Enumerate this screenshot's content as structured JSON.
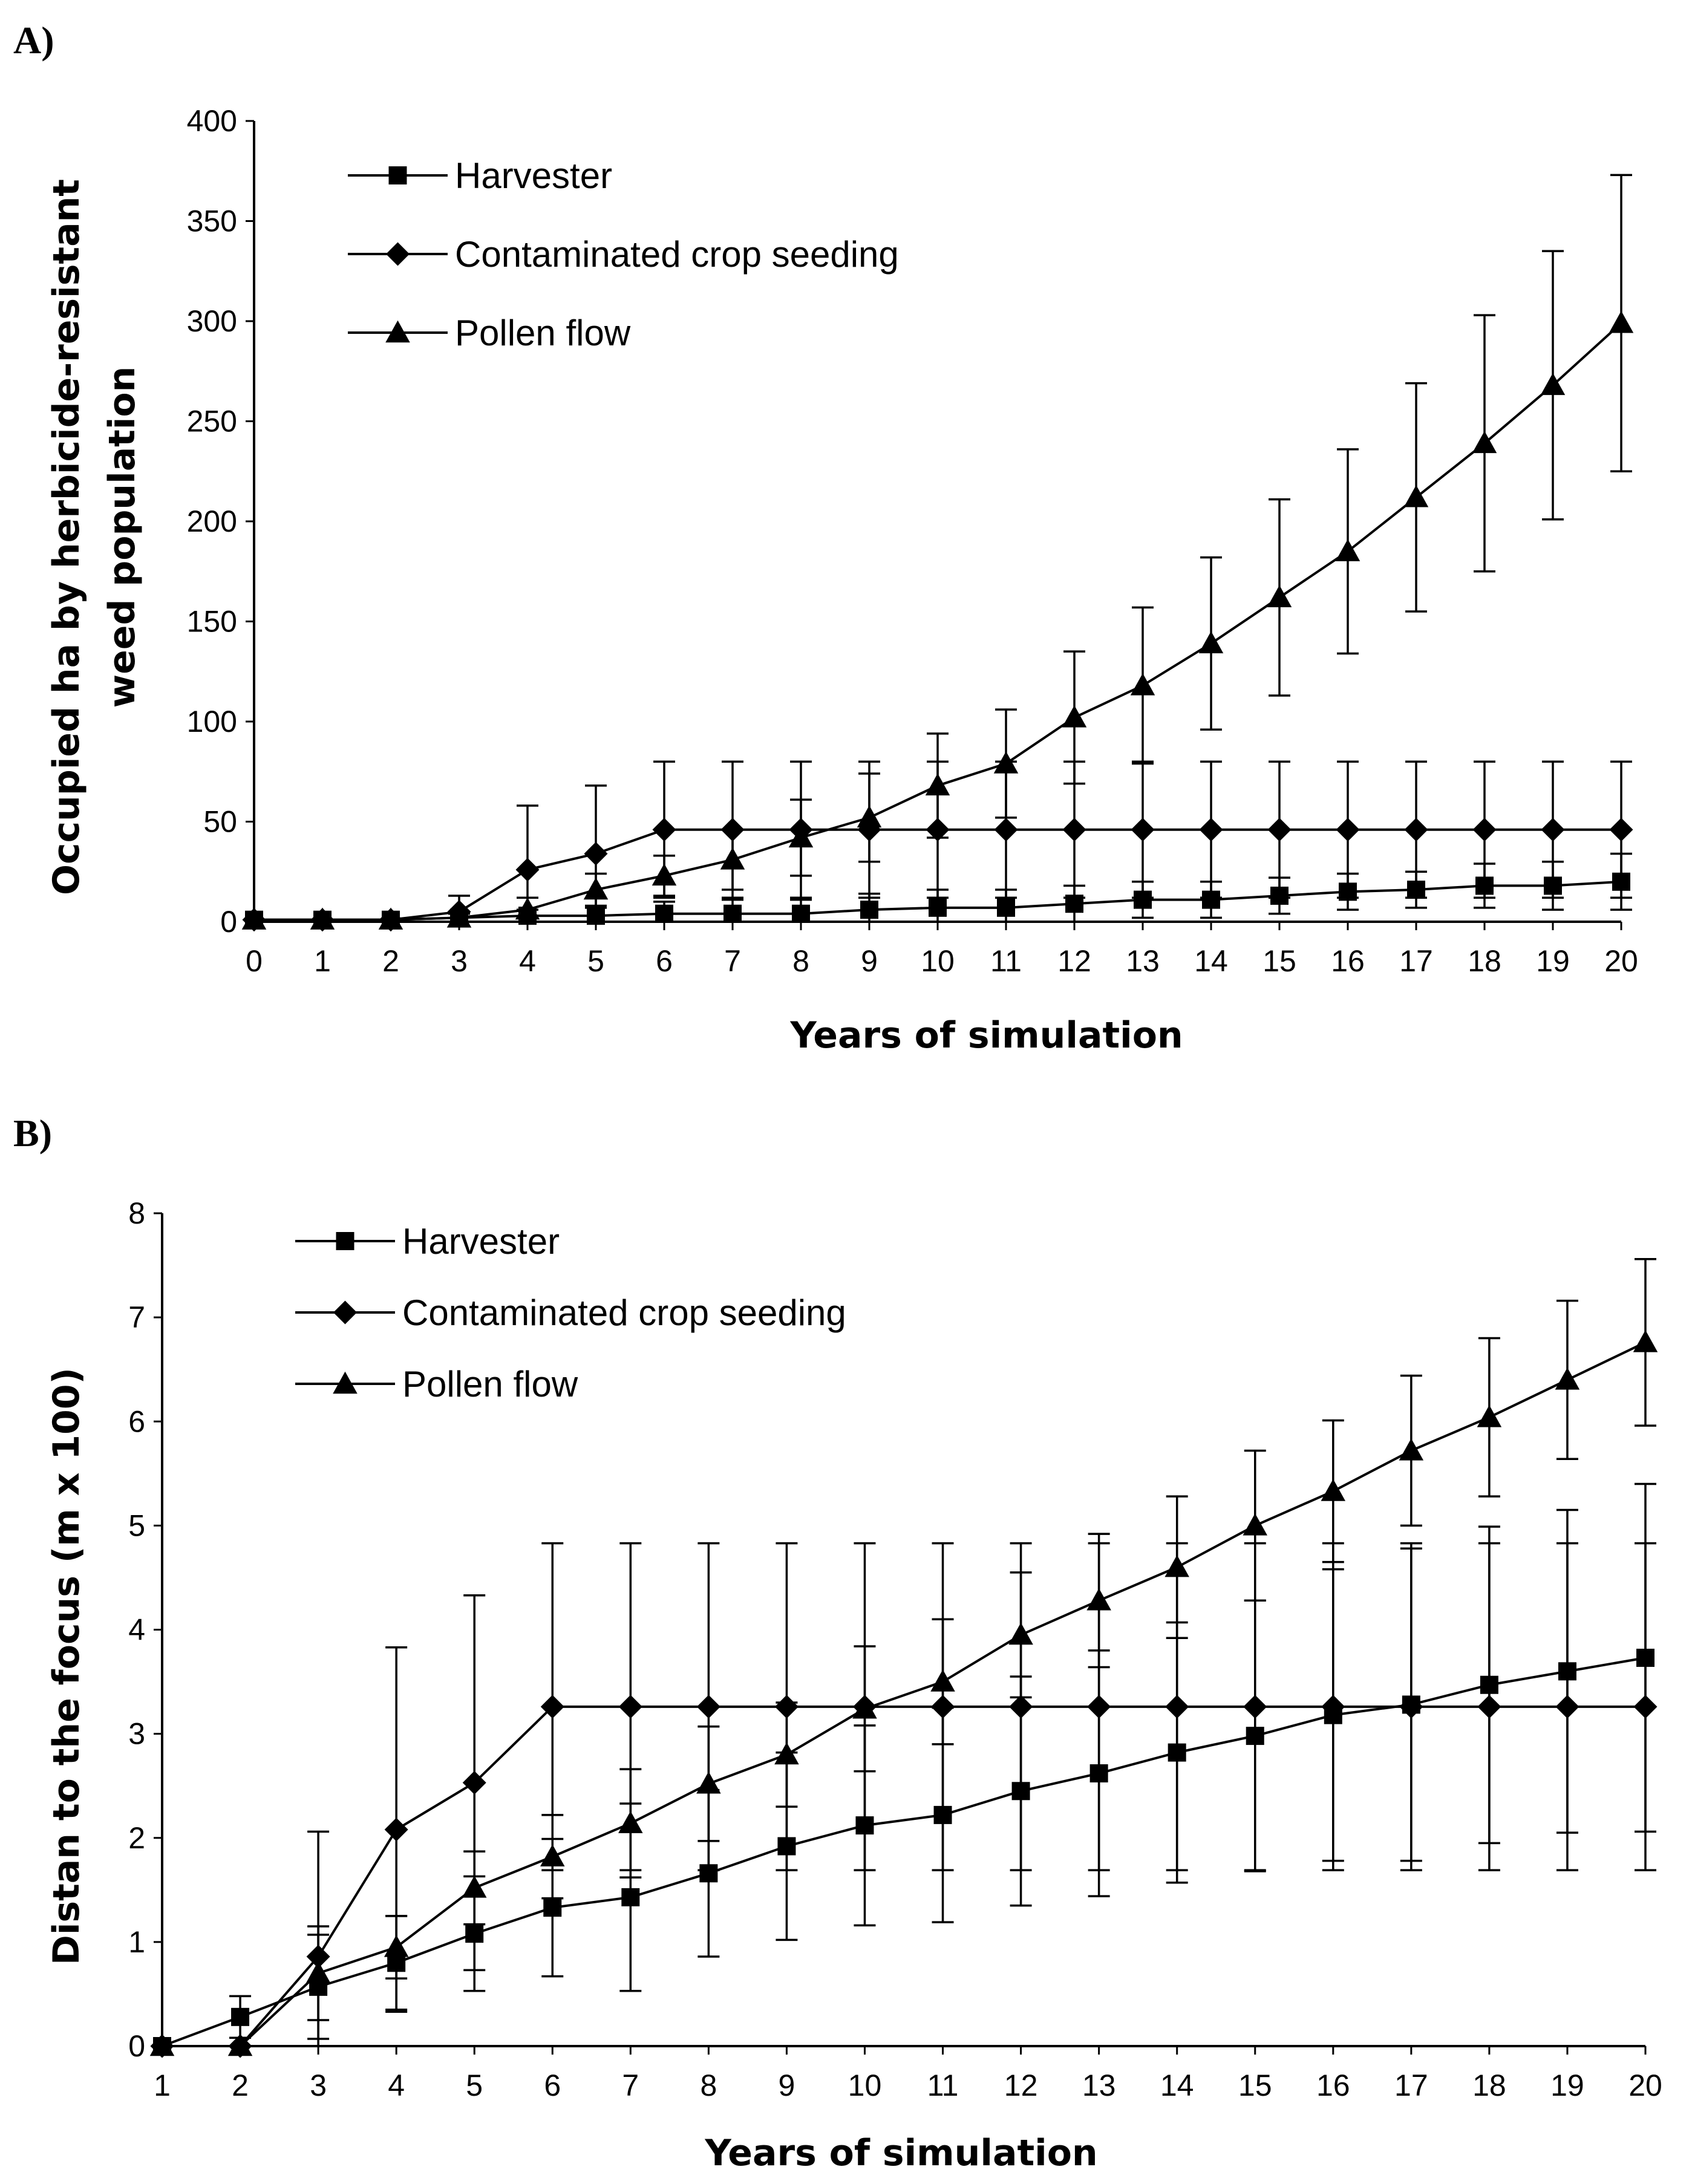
{
  "chart_data": [
    {
      "panel_label": "A)",
      "type": "line",
      "title": "",
      "xlabel": "Years of simulation",
      "ylabel_line1": "Occupied ha  by herbicide-resistant",
      "ylabel_line2": "weed population",
      "xlim": [
        0,
        20
      ],
      "ylim": [
        0,
        400
      ],
      "x_ticks": [
        0,
        1,
        2,
        3,
        4,
        5,
        6,
        7,
        8,
        9,
        10,
        11,
        12,
        13,
        14,
        15,
        16,
        17,
        18,
        19,
        20
      ],
      "y_ticks": [
        0,
        50,
        100,
        150,
        200,
        250,
        300,
        350,
        400
      ],
      "legend_position": "top-left",
      "grid": false,
      "x": [
        0,
        1,
        2,
        3,
        4,
        5,
        6,
        7,
        8,
        9,
        10,
        11,
        12,
        13,
        14,
        15,
        16,
        17,
        18,
        19,
        20
      ],
      "series": [
        {
          "name": "Harvester",
          "marker": "square",
          "values": [
            1,
            1,
            1,
            2,
            3,
            3,
            4,
            4,
            4,
            6,
            7,
            7,
            9,
            11,
            11,
            13,
            15,
            16,
            18,
            18,
            20
          ],
          "error": [
            0,
            0,
            0,
            2,
            3,
            4,
            6,
            7,
            7,
            8,
            9,
            9,
            9,
            9,
            9,
            9,
            9,
            9,
            11,
            12,
            14
          ]
        },
        {
          "name": "Contaminated crop seeding",
          "marker": "diamond",
          "values": [
            1,
            1,
            1,
            5,
            26,
            34,
            46,
            46,
            46,
            46,
            46,
            46,
            46,
            46,
            46,
            46,
            46,
            46,
            46,
            46,
            46
          ],
          "error": [
            0,
            0,
            0,
            8,
            32,
            34,
            34,
            34,
            34,
            34,
            34,
            34,
            34,
            34,
            34,
            34,
            34,
            34,
            34,
            34,
            34
          ]
        },
        {
          "name": "Pollen flow",
          "marker": "triangle",
          "values": [
            1,
            1,
            1,
            2,
            6,
            16,
            23,
            31,
            42,
            52,
            68,
            79,
            102,
            118,
            139,
            162,
            185,
            212,
            239,
            268,
            299
          ],
          "error": [
            0,
            0,
            0,
            3,
            6,
            8,
            10,
            15,
            19,
            22,
            26,
            27,
            33,
            39,
            43,
            49,
            51,
            57,
            64,
            67,
            74
          ]
        }
      ]
    },
    {
      "panel_label": "B)",
      "type": "line",
      "title": "",
      "xlabel": "Years of simulation",
      "ylabel": "Distan to the focus (m x 100)",
      "xlim": [
        1,
        20
      ],
      "ylim": [
        0,
        8
      ],
      "x_ticks": [
        1,
        2,
        3,
        4,
        5,
        6,
        7,
        8,
        9,
        10,
        11,
        12,
        13,
        14,
        15,
        16,
        17,
        18,
        19,
        20
      ],
      "y_ticks": [
        0,
        1,
        2,
        3,
        4,
        5,
        6,
        7,
        8
      ],
      "legend_position": "top-left",
      "grid": false,
      "x": [
        1,
        2,
        3,
        4,
        5,
        6,
        7,
        8,
        9,
        10,
        11,
        12,
        13,
        14,
        15,
        16,
        17,
        18,
        19,
        20
      ],
      "series": [
        {
          "name": "Harvester",
          "marker": "square",
          "values": [
            0,
            0.28,
            0.57,
            0.8,
            1.08,
            1.33,
            1.43,
            1.66,
            1.92,
            2.12,
            2.22,
            2.45,
            2.62,
            2.82,
            2.98,
            3.18,
            3.28,
            3.47,
            3.6,
            3.73
          ],
          "error": [
            0,
            0.2,
            0.5,
            0.45,
            0.55,
            0.66,
            0.9,
            0.8,
            0.9,
            0.96,
            1.03,
            1.1,
            1.18,
            1.25,
            1.3,
            1.4,
            1.5,
            1.52,
            1.55,
            1.67
          ]
        },
        {
          "name": "Contaminated crop seeding",
          "marker": "diamond",
          "values": [
            0,
            0,
            0.86,
            2.08,
            2.53,
            3.26,
            3.26,
            3.26,
            3.26,
            3.26,
            3.26,
            3.26,
            3.26,
            3.26,
            3.26,
            3.26,
            3.26,
            3.26,
            3.26,
            3.26
          ],
          "error": [
            0,
            0,
            1.2,
            1.75,
            1.8,
            1.57,
            1.57,
            1.57,
            1.57,
            1.57,
            1.57,
            1.57,
            1.57,
            1.57,
            1.57,
            1.57,
            1.57,
            1.57,
            1.57,
            1.57
          ]
        },
        {
          "name": "Pollen flow",
          "marker": "triangle",
          "values": [
            0,
            0,
            0.7,
            0.95,
            1.52,
            1.82,
            2.14,
            2.52,
            2.8,
            3.24,
            3.5,
            3.95,
            4.28,
            4.6,
            5.0,
            5.33,
            5.72,
            6.04,
            6.4,
            6.76
          ],
          "error": [
            0,
            0,
            0.45,
            0.3,
            0.35,
            0.4,
            0.52,
            0.55,
            0.5,
            0.6,
            0.6,
            0.6,
            0.64,
            0.68,
            0.72,
            0.68,
            0.72,
            0.76,
            0.76,
            0.8
          ]
        }
      ]
    }
  ]
}
